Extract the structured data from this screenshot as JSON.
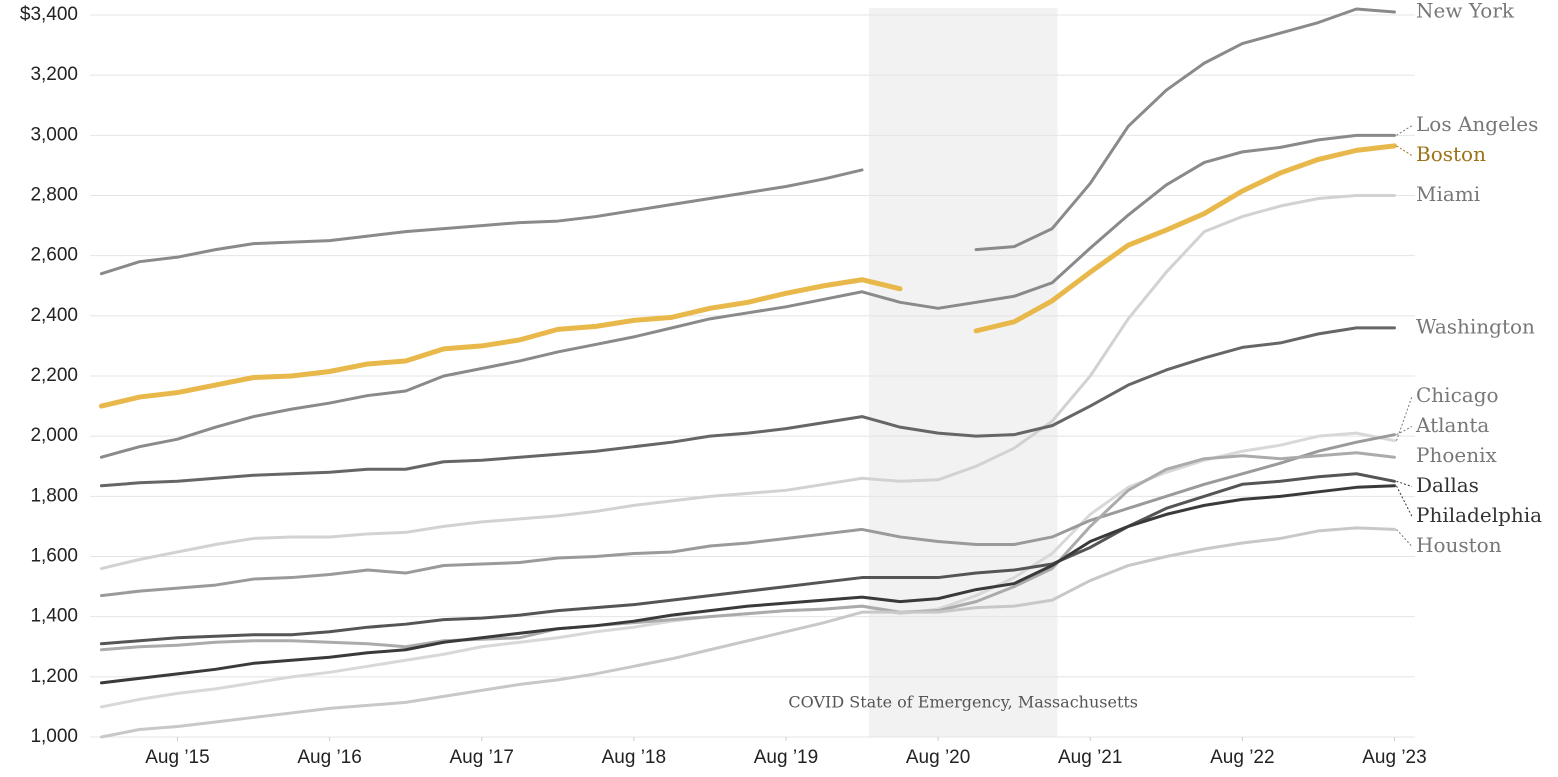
{
  "chart_data": {
    "type": "line",
    "x": [
      2015.125,
      2015.375,
      2015.625,
      2015.875,
      2016.125,
      2016.375,
      2016.625,
      2016.875,
      2017.125,
      2017.375,
      2017.625,
      2017.875,
      2018.125,
      2018.375,
      2018.625,
      2018.875,
      2019.125,
      2019.375,
      2019.625,
      2019.875,
      2020.125,
      2020.375,
      2020.625,
      2020.875,
      2021.125,
      2021.375,
      2021.625,
      2021.875,
      2022.125,
      2022.375,
      2022.625,
      2022.875,
      2023.125,
      2023.375,
      2023.625
    ],
    "xlim": [
      2015.05,
      2023.76
    ],
    "xticks": [
      {
        "value": 2015.625,
        "label": "Aug ’15"
      },
      {
        "value": 2016.625,
        "label": "Aug ’16"
      },
      {
        "value": 2017.625,
        "label": "Aug ’17"
      },
      {
        "value": 2018.625,
        "label": "Aug ’18"
      },
      {
        "value": 2019.625,
        "label": "Aug ’19"
      },
      {
        "value": 2020.625,
        "label": "Aug ’20"
      },
      {
        "value": 2021.625,
        "label": "Aug ’21"
      },
      {
        "value": 2022.625,
        "label": "Aug ’22"
      },
      {
        "value": 2023.625,
        "label": "Aug ’23"
      }
    ],
    "ylim": [
      1000,
      3400
    ],
    "yticks": [
      {
        "value": 1000,
        "label": "1,000"
      },
      {
        "value": 1200,
        "label": "1,200"
      },
      {
        "value": 1400,
        "label": "1,400"
      },
      {
        "value": 1600,
        "label": "1,600"
      },
      {
        "value": 1800,
        "label": "1,800"
      },
      {
        "value": 2000,
        "label": "2,000"
      },
      {
        "value": 2200,
        "label": "2,200"
      },
      {
        "value": 2400,
        "label": "2,400"
      },
      {
        "value": 2600,
        "label": "2,600"
      },
      {
        "value": 2800,
        "label": "2,800"
      },
      {
        "value": 3000,
        "label": "3,000"
      },
      {
        "value": 3200,
        "label": "3,200"
      },
      {
        "value": 3400,
        "label": "$3,400"
      }
    ],
    "grid": true,
    "shade": {
      "range": [
        2020.17,
        2021.41
      ],
      "label": "COVID State of Emergency, Massachusetts"
    },
    "series": [
      {
        "name": "New York",
        "color": "#8a8a8a",
        "label_color": "#777777",
        "values": [
          2540,
          2580,
          2595,
          2620,
          2640,
          2645,
          2650,
          2665,
          2680,
          2690,
          2700,
          2710,
          2715,
          2730,
          2750,
          2770,
          2790,
          2810,
          2830,
          2855,
          2885,
          null,
          null,
          2620,
          2630,
          2690,
          2840,
          3030,
          3150,
          3240,
          3305,
          3340,
          3375,
          3420,
          3410
        ]
      },
      {
        "name": "Los Angeles",
        "color": "#8a8a8a",
        "label_color": "#777777",
        "values": [
          1930,
          1965,
          1990,
          2030,
          2065,
          2090,
          2110,
          2135,
          2150,
          2200,
          2225,
          2250,
          2280,
          2305,
          2330,
          2360,
          2390,
          2410,
          2430,
          2455,
          2480,
          2445,
          2425,
          2445,
          2465,
          2510,
          2625,
          2735,
          2835,
          2910,
          2945,
          2960,
          2985,
          3000,
          3000
        ]
      },
      {
        "name": "Boston",
        "color": "#e8b84a",
        "label_color": "#9a7418",
        "width": 5,
        "values": [
          2100,
          2130,
          2145,
          2170,
          2195,
          2200,
          2215,
          2240,
          2250,
          2290,
          2300,
          2320,
          2355,
          2365,
          2385,
          2395,
          2425,
          2445,
          2475,
          2500,
          2520,
          2490,
          null,
          2350,
          2380,
          2450,
          2545,
          2635,
          2685,
          2740,
          2815,
          2875,
          2920,
          2950,
          2965
        ]
      },
      {
        "name": "Miami",
        "color": "#d2d2d2",
        "label_color": "#777777",
        "values": [
          1560,
          1590,
          1615,
          1640,
          1660,
          1665,
          1665,
          1675,
          1680,
          1700,
          1715,
          1725,
          1735,
          1750,
          1770,
          1785,
          1800,
          1810,
          1820,
          1840,
          1860,
          1850,
          1855,
          1900,
          1960,
          2050,
          2200,
          2390,
          2545,
          2680,
          2730,
          2765,
          2790,
          2800,
          2800
        ]
      },
      {
        "name": "Washington",
        "color": "#666666",
        "label_color": "#777777",
        "values": [
          1835,
          1845,
          1850,
          1860,
          1870,
          1875,
          1880,
          1890,
          1890,
          1915,
          1920,
          1930,
          1940,
          1950,
          1965,
          1980,
          2000,
          2010,
          2025,
          2045,
          2065,
          2030,
          2010,
          2000,
          2005,
          2035,
          2100,
          2170,
          2220,
          2260,
          2295,
          2310,
          2340,
          2360,
          2360
        ]
      },
      {
        "name": "Chicago",
        "color": "#d8d8d8",
        "label_color": "#777777",
        "values": [
          1100,
          1125,
          1145,
          1160,
          1180,
          1200,
          1215,
          1235,
          1255,
          1275,
          1300,
          1315,
          1330,
          1350,
          1365,
          1385,
          1400,
          1410,
          1420,
          1425,
          1435,
          1410,
          1425,
          1470,
          1530,
          1610,
          1740,
          1830,
          1880,
          1920,
          1950,
          1970,
          2000,
          2010,
          1985
        ]
      },
      {
        "name": "Atlanta",
        "color": "#9a9a9a",
        "label_color": "#777777",
        "values": [
          1470,
          1485,
          1495,
          1505,
          1525,
          1530,
          1540,
          1555,
          1545,
          1570,
          1575,
          1580,
          1595,
          1600,
          1610,
          1615,
          1635,
          1645,
          1660,
          1675,
          1690,
          1665,
          1650,
          1640,
          1640,
          1665,
          1720,
          1760,
          1800,
          1840,
          1875,
          1910,
          1950,
          1980,
          2005
        ]
      },
      {
        "name": "Phoenix",
        "color": "#ababab",
        "label_color": "#777777",
        "values": [
          1290,
          1300,
          1305,
          1315,
          1320,
          1320,
          1315,
          1310,
          1300,
          1320,
          1325,
          1330,
          1360,
          1370,
          1380,
          1390,
          1400,
          1410,
          1420,
          1425,
          1435,
          1415,
          1420,
          1450,
          1500,
          1560,
          1700,
          1820,
          1890,
          1925,
          1935,
          1925,
          1935,
          1945,
          1930
        ]
      },
      {
        "name": "Dallas",
        "color": "#555555",
        "label_color": "#333333",
        "values": [
          1310,
          1320,
          1330,
          1335,
          1340,
          1340,
          1350,
          1365,
          1375,
          1390,
          1395,
          1405,
          1420,
          1430,
          1440,
          1455,
          1470,
          1485,
          1500,
          1515,
          1530,
          1530,
          1530,
          1545,
          1555,
          1575,
          1630,
          1700,
          1760,
          1800,
          1840,
          1850,
          1865,
          1875,
          1850
        ]
      },
      {
        "name": "Philadelphia",
        "color": "#3a3a3a",
        "label_color": "#333333",
        "values": [
          1180,
          1195,
          1210,
          1225,
          1245,
          1255,
          1265,
          1280,
          1290,
          1315,
          1330,
          1345,
          1360,
          1370,
          1385,
          1405,
          1420,
          1435,
          1445,
          1455,
          1465,
          1450,
          1460,
          1490,
          1510,
          1570,
          1650,
          1700,
          1740,
          1770,
          1790,
          1800,
          1815,
          1830,
          1835
        ]
      },
      {
        "name": "Houston",
        "color": "#c8c8c8",
        "label_color": "#777777",
        "values": [
          1000,
          1025,
          1035,
          1050,
          1065,
          1080,
          1095,
          1105,
          1115,
          1135,
          1155,
          1175,
          1190,
          1210,
          1235,
          1260,
          1290,
          1320,
          1350,
          1380,
          1415,
          1415,
          1415,
          1430,
          1435,
          1455,
          1520,
          1570,
          1600,
          1625,
          1645,
          1660,
          1685,
          1695,
          1690
        ]
      }
    ]
  }
}
